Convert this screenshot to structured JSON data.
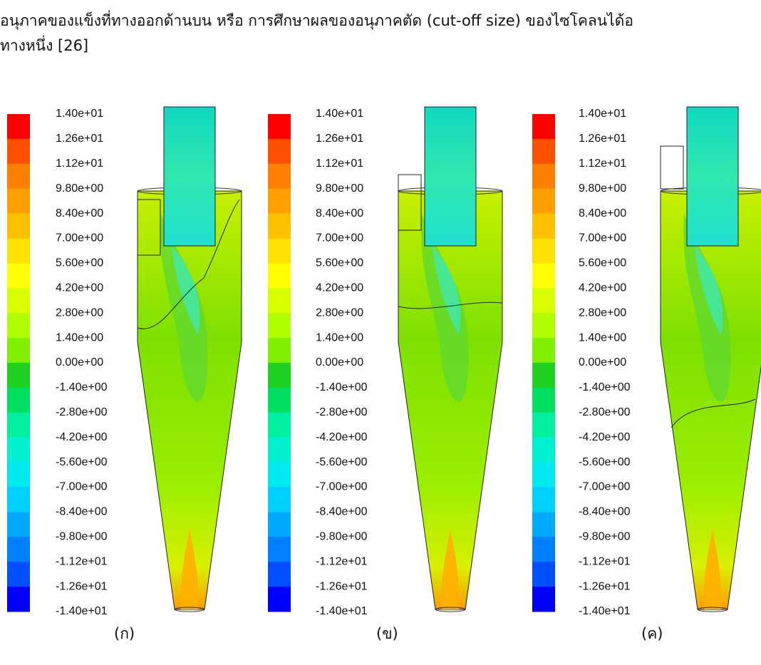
{
  "text": {
    "line1": "อนุภาคของแข็งที่ทางออกด้านบน หรือ การศึกษาผลของอนุภาคตัด (cut-off size) ของไซโคลนได้อ",
    "line2": "ทางหนึ่ง [26]"
  },
  "legend_levels": [
    "1.40e+01",
    "1.26e+01",
    "1.12e+01",
    "9.80e+00",
    "8.40e+00",
    "7.00e+00",
    "5.60e+00",
    "4.20e+00",
    "2.80e+00",
    "1.40e+00",
    "0.00e+00",
    "-1.40e+00",
    "-2.80e+00",
    "-4.20e+00",
    "-5.60e+00",
    "-7.00e+00",
    "-8.40e+00",
    "-9.80e+00",
    "-1.12e+01",
    "-1.26e+01",
    "-1.40e+01"
  ],
  "panels": [
    {
      "caption": "(ก)"
    },
    {
      "caption": "(ข)"
    },
    {
      "caption": "(ค)"
    }
  ]
}
